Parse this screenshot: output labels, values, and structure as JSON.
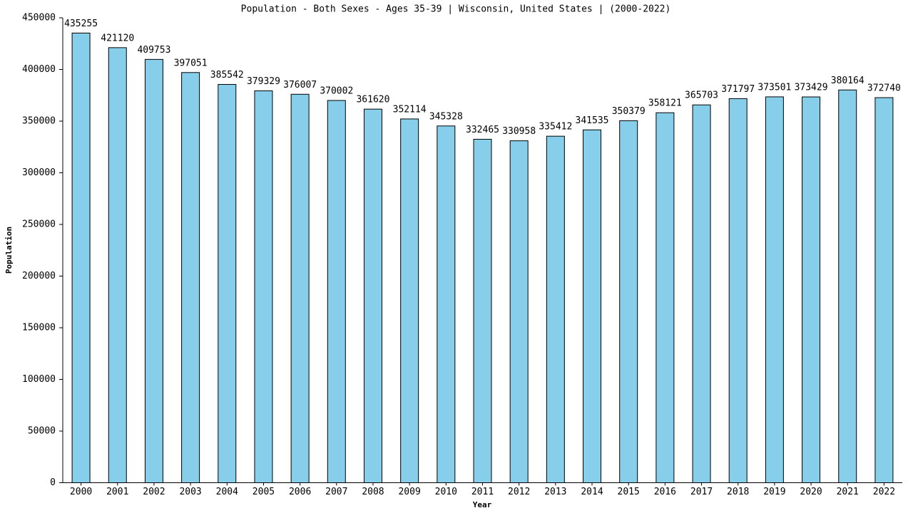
{
  "chart_data": {
    "type": "bar",
    "title": "Population - Both Sexes - Ages 35-39 | Wisconsin, United States |  (2000-2022)",
    "x_label": "Year",
    "y_label": "Population",
    "categories": [
      "2000",
      "2001",
      "2002",
      "2003",
      "2004",
      "2005",
      "2006",
      "2007",
      "2008",
      "2009",
      "2010",
      "2011",
      "2012",
      "2013",
      "2014",
      "2015",
      "2016",
      "2017",
      "2018",
      "2019",
      "2020",
      "2021",
      "2022"
    ],
    "values": [
      435255,
      421120,
      409753,
      397051,
      385542,
      379329,
      376007,
      370002,
      361620,
      352114,
      345328,
      332465,
      330958,
      335412,
      341535,
      350379,
      358121,
      365703,
      371797,
      373501,
      373429,
      380164,
      372740
    ],
    "color": "#87ceeb",
    "ylim": [
      0,
      450000
    ],
    "yticks": [
      0,
      50000,
      100000,
      150000,
      200000,
      250000,
      300000,
      350000,
      400000,
      450000
    ],
    "grid": false
  }
}
